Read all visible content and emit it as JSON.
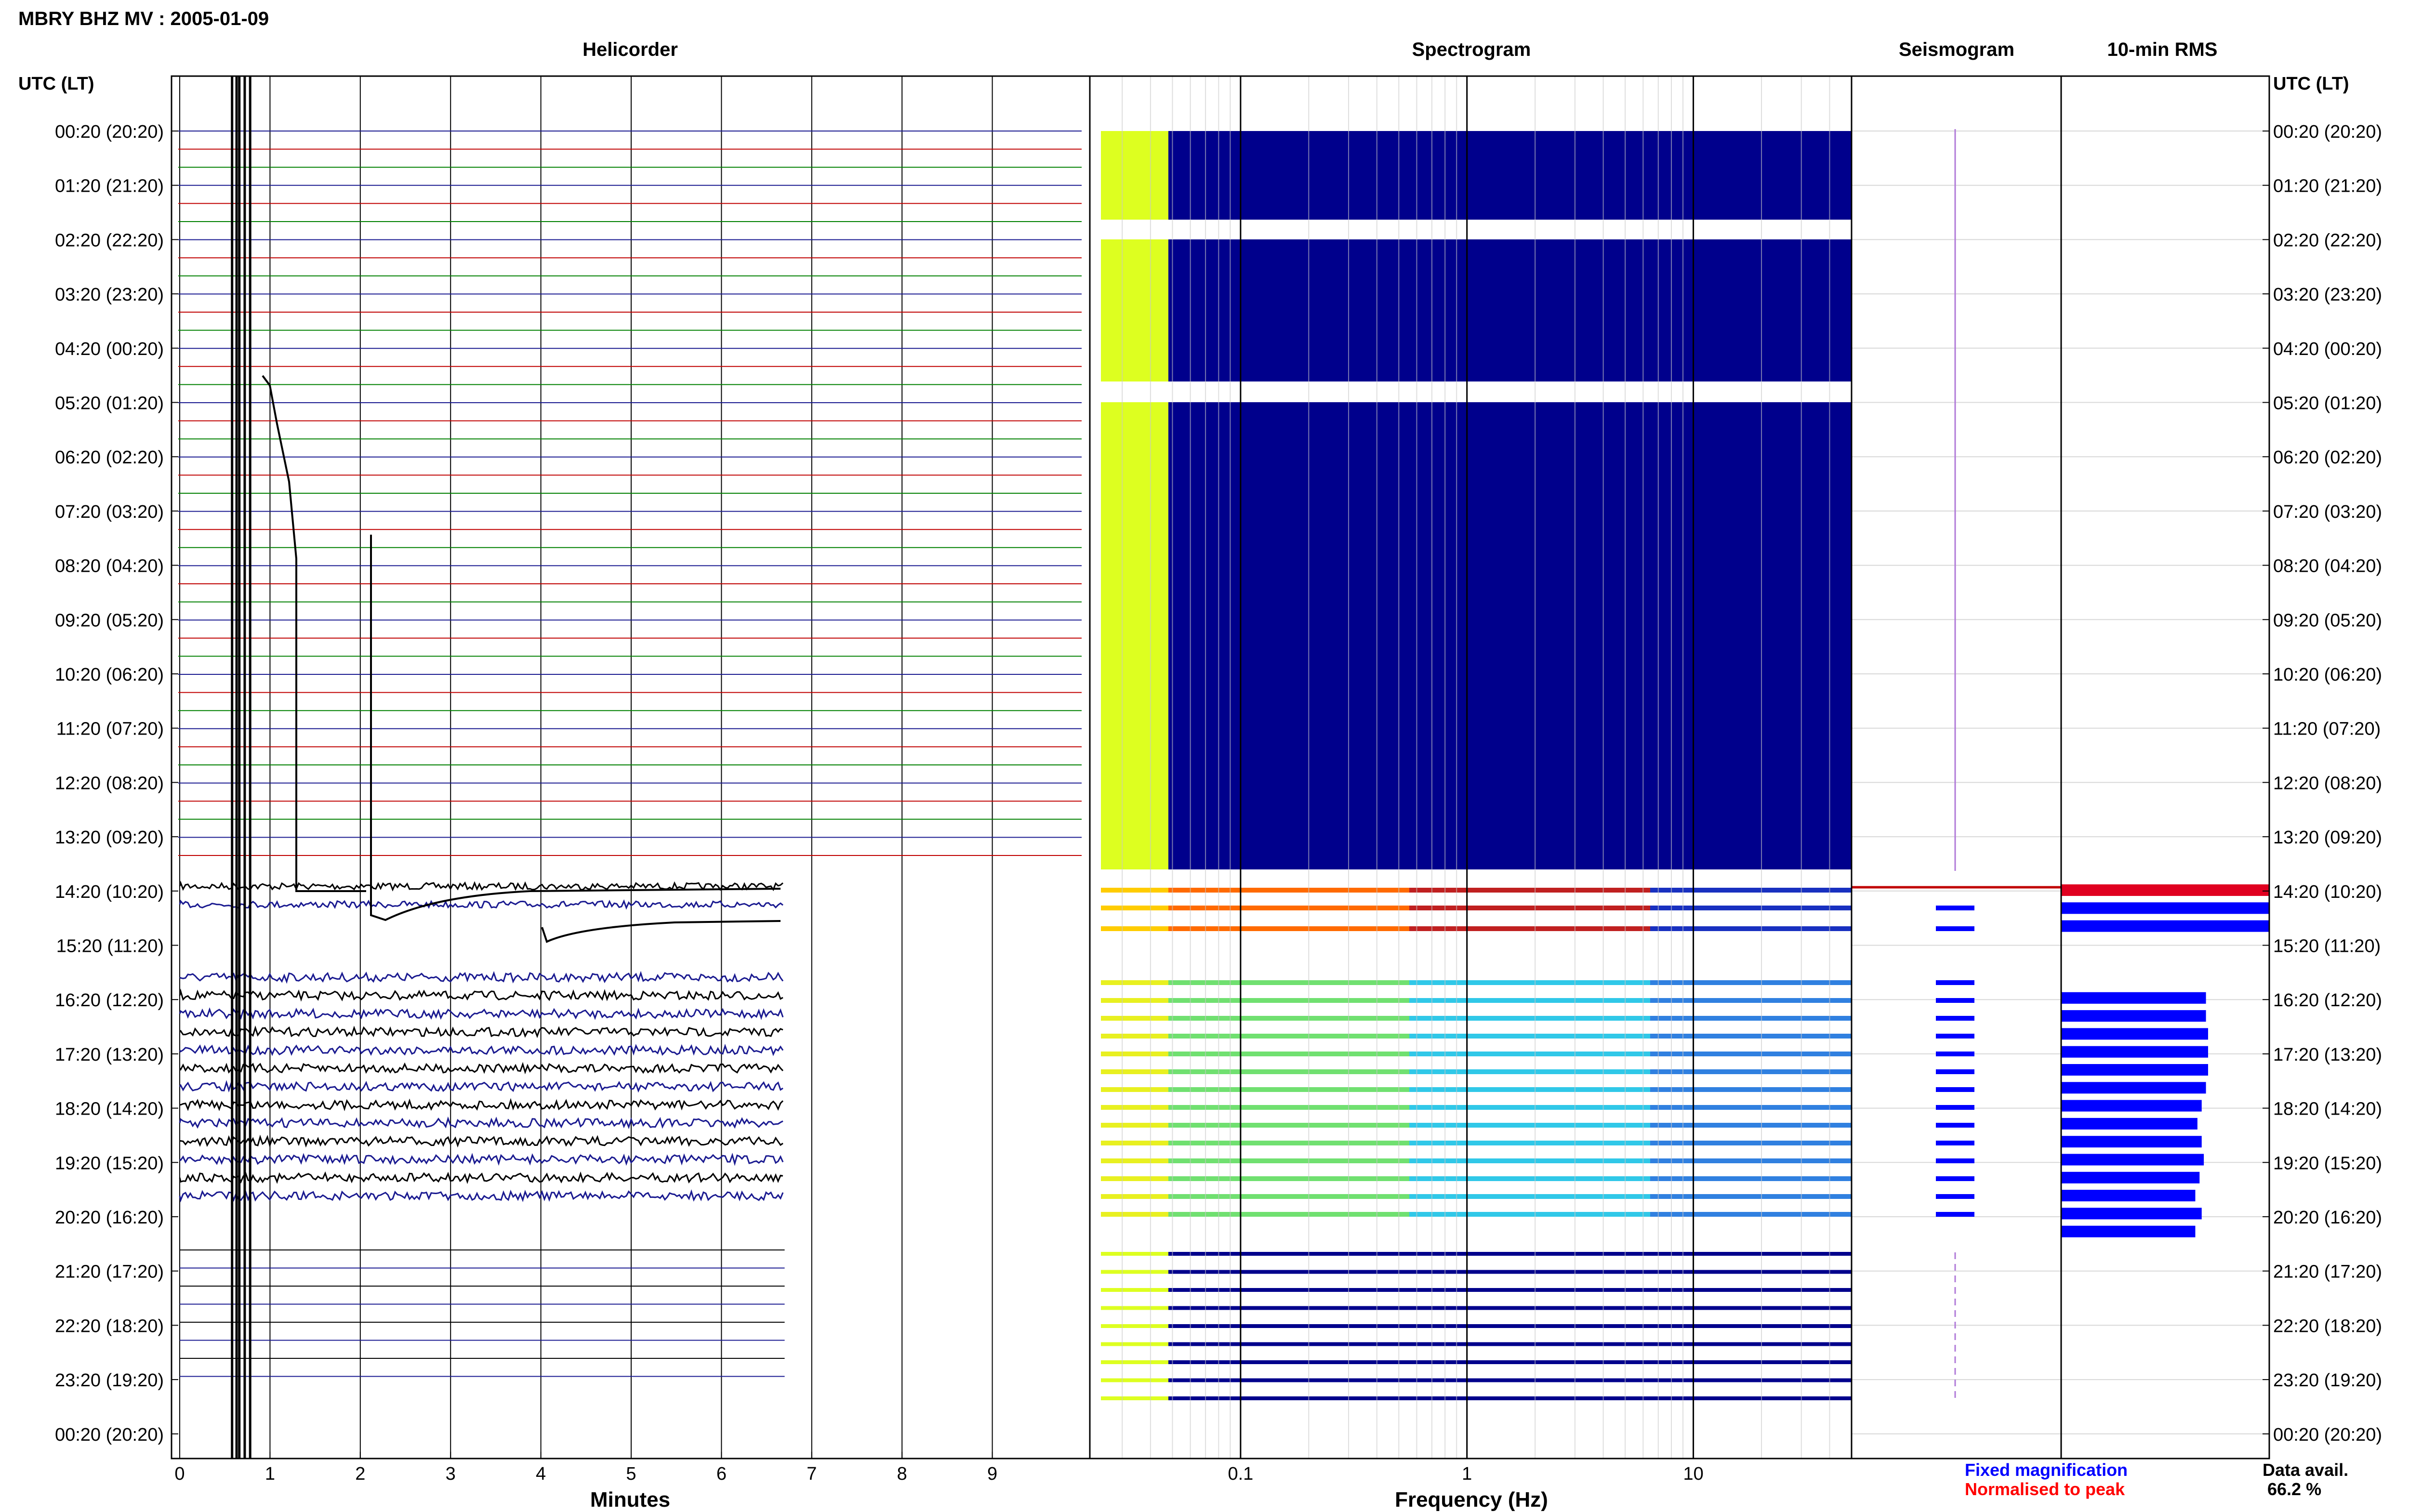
{
  "header": {
    "station_title": "MBRY BHZ MV : 2005-01-09",
    "time_axis_label": "UTC (LT)"
  },
  "panels": {
    "helicorder": "Helicorder",
    "spectrogram": "Spectrogram",
    "seismogram": "Seismogram",
    "rms": "10-min RMS"
  },
  "axes": {
    "minutes_label": "Minutes",
    "frequency_label": "Frequency (Hz)"
  },
  "legend": {
    "fixed": "Fixed magnification",
    "normalised": "Normalised to peak",
    "colors": {
      "fixed": "#0000ff",
      "normalised": "#ff0000"
    }
  },
  "availability": {
    "label": "Data avail.",
    "value": "66.2 %"
  },
  "chart_data": {
    "type": "helicorder",
    "time_labels": [
      "00:20 (20:20)",
      "01:20 (21:20)",
      "02:20 (22:20)",
      "03:20 (23:20)",
      "04:20 (00:20)",
      "05:20 (01:20)",
      "06:20 (02:20)",
      "07:20 (03:20)",
      "08:20 (04:20)",
      "09:20 (05:20)",
      "10:20 (06:20)",
      "11:20 (07:20)",
      "12:20 (08:20)",
      "13:20 (09:20)",
      "14:20 (10:20)",
      "15:20 (11:20)",
      "16:20 (12:20)",
      "17:20 (13:20)",
      "18:20 (14:20)",
      "19:20 (15:20)",
      "20:20 (16:20)",
      "21:20 (17:20)",
      "22:20 (18:20)",
      "23:20 (19:20)",
      "00:20 (20:20)"
    ],
    "minute_ticks": [
      "0",
      "1",
      "2",
      "3",
      "4",
      "5",
      "6",
      "7",
      "8",
      "9"
    ],
    "frequency_ticks": [
      "0.1",
      "1",
      "10"
    ],
    "frequency_log_range": [
      0.025,
      50
    ],
    "helicorder_rows": 72,
    "helicorder_flat_until_row": 41,
    "helicorder_active_rows": [
      42,
      62
    ],
    "helicorder_active_minutes": 6.7,
    "rms_row_fractions": [
      0.98,
      0.98,
      0.98,
      0,
      0,
      0,
      0.68,
      0.68,
      0.69,
      0.69,
      0.69,
      0.68,
      0.66,
      0.64,
      0.66,
      0.67,
      0.65,
      0.63,
      0.66,
      0.63
    ],
    "colors": {
      "spectro_bg": "#00008c",
      "spectro_low": "#ddff20",
      "trace_black": "#000000",
      "trace_blue": "#1a1a90",
      "trace_red": "#c00000",
      "trace_green": "#008000",
      "rms_bar": "#0000ff",
      "rms_top": "#e00020"
    }
  }
}
